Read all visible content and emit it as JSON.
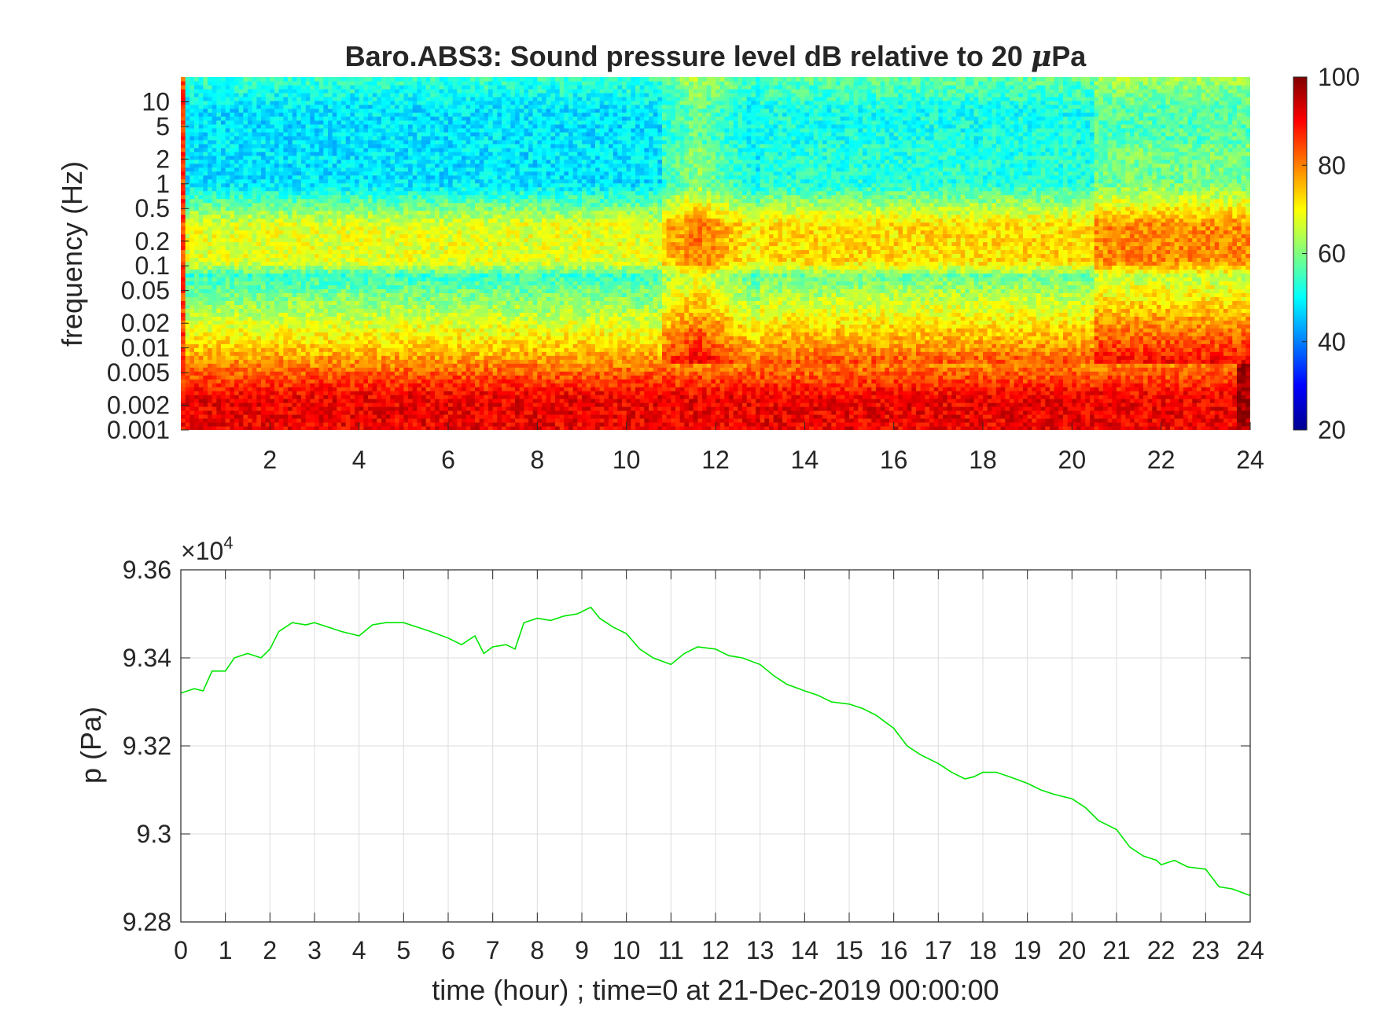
{
  "chart_data": [
    {
      "type": "heatmap",
      "title_main": "Baro.ABS3: Sound pressure level dB relative to 20 ",
      "title_mu": "μ",
      "title_end": "Pa",
      "xlabel": "",
      "ylabel": "frequency (Hz)",
      "xlim": [
        0,
        24
      ],
      "x_ticks": [
        2,
        4,
        6,
        8,
        10,
        12,
        14,
        16,
        18,
        20,
        22,
        24
      ],
      "x_tick_labels": [
        "2",
        "4",
        "6",
        "8",
        "10",
        "12",
        "14",
        "16",
        "18",
        "20",
        "22",
        "24"
      ],
      "y_scale": "log",
      "ylim": [
        0.001,
        20
      ],
      "y_ticks": [
        0.001,
        0.002,
        0.005,
        0.01,
        0.02,
        0.05,
        0.1,
        0.2,
        0.5,
        1,
        2,
        5,
        10
      ],
      "y_tick_labels": [
        "0.001",
        "0.002",
        "0.005",
        "0.01",
        "0.02",
        "0.05",
        "0.1",
        "0.2",
        "0.5",
        "1",
        "2",
        "5",
        "10"
      ],
      "colormap": "jet",
      "clim": [
        20,
        100
      ],
      "colorbar_ticks": [
        20,
        40,
        60,
        80,
        100
      ],
      "colorbar_tick_labels": [
        "20",
        "40",
        "60",
        "80",
        "100"
      ]
    },
    {
      "type": "line",
      "title": "",
      "xlabel": "time (hour) ; time=0 at 21-Dec-2019 00:00:00",
      "ylabel": "p (Pa)",
      "xlim": [
        0,
        24
      ],
      "ylim": [
        92800,
        93600
      ],
      "exponent_times": "×10",
      "exponent_power": "4",
      "x_ticks": [
        0,
        1,
        2,
        3,
        4,
        5,
        6,
        7,
        8,
        9,
        10,
        11,
        12,
        13,
        14,
        15,
        16,
        17,
        18,
        19,
        20,
        21,
        22,
        23,
        24
      ],
      "x_tick_labels": [
        "0",
        "1",
        "2",
        "3",
        "4",
        "5",
        "6",
        "7",
        "8",
        "9",
        "10",
        "11",
        "12",
        "13",
        "14",
        "15",
        "16",
        "17",
        "18",
        "19",
        "20",
        "21",
        "22",
        "23",
        "24"
      ],
      "y_ticks": [
        92800,
        93000,
        93200,
        93400,
        93600
      ],
      "y_tick_labels": [
        "9.28",
        "9.3",
        "9.32",
        "9.34",
        "9.36"
      ],
      "grid": true,
      "line_color": "#00e600",
      "series": [
        {
          "x": [
            0,
            0.3,
            0.5,
            0.7,
            1.0,
            1.2,
            1.5,
            1.8,
            2.0,
            2.2,
            2.5,
            2.8,
            3.0,
            3.3,
            3.6,
            4.0,
            4.3,
            4.6,
            5.0,
            5.3,
            5.6,
            6.0,
            6.3,
            6.6,
            6.8,
            7.0,
            7.3,
            7.5,
            7.7,
            8.0,
            8.3,
            8.6,
            8.9,
            9.2,
            9.4,
            9.7,
            10.0,
            10.3,
            10.6,
            11.0,
            11.3,
            11.6,
            12.0,
            12.3,
            12.6,
            13.0,
            13.3,
            13.6,
            14.0,
            14.3,
            14.6,
            15.0,
            15.3,
            15.6,
            16.0,
            16.3,
            16.6,
            17.0,
            17.3,
            17.6,
            17.8,
            18.0,
            18.3,
            18.6,
            19.0,
            19.3,
            19.6,
            20.0,
            20.3,
            20.6,
            21.0,
            21.3,
            21.6,
            21.9,
            22.0,
            22.3,
            22.6,
            23.0,
            23.3,
            23.6,
            24.0
          ],
          "y": [
            93320,
            93330,
            93325,
            93370,
            93370,
            93400,
            93410,
            93400,
            93420,
            93460,
            93480,
            93475,
            93480,
            93470,
            93460,
            93450,
            93475,
            93480,
            93480,
            93470,
            93460,
            93445,
            93430,
            93450,
            93410,
            93425,
            93430,
            93420,
            93480,
            93490,
            93485,
            93495,
            93500,
            93515,
            93490,
            93470,
            93455,
            93420,
            93400,
            93385,
            93410,
            93425,
            93420,
            93405,
            93400,
            93385,
            93360,
            93340,
            93325,
            93315,
            93300,
            93295,
            93285,
            93270,
            93240,
            93200,
            93180,
            93160,
            93140,
            93125,
            93130,
            93140,
            93140,
            93130,
            93115,
            93100,
            93090,
            93080,
            93060,
            93030,
            93010,
            92970,
            92950,
            92940,
            92930,
            92940,
            92925,
            92920,
            92880,
            92875,
            92860
          ]
        }
      ]
    }
  ]
}
